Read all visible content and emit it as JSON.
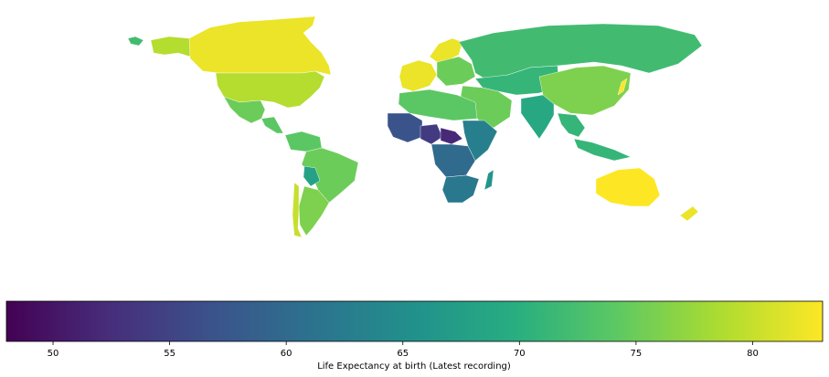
{
  "colorbar": {
    "label": "Life Expectancy at birth (Latest recording)",
    "min": 48,
    "max": 83,
    "ticks": [
      "50",
      "55",
      "60",
      "65",
      "70",
      "75",
      "80"
    ],
    "stops": [
      "#440154",
      "#472d7b",
      "#3b528b",
      "#2c728e",
      "#21918c",
      "#28ae80",
      "#5ec962",
      "#addc30",
      "#fde725"
    ]
  },
  "chart_data": {
    "type": "choropleth",
    "title": "",
    "value_label": "Life Expectancy at birth (Latest recording)",
    "range": [
      48,
      83
    ],
    "regions": [
      {
        "region": "Canada",
        "value": 82
      },
      {
        "region": "Alaska (USA)",
        "value": 79
      },
      {
        "region": "United States",
        "value": 79
      },
      {
        "region": "Greenland",
        "value": 72
      },
      {
        "region": "Mexico",
        "value": 75
      },
      {
        "region": "Central America",
        "value": 74
      },
      {
        "region": "Brazil",
        "value": 75
      },
      {
        "region": "Colombia / Venezuela",
        "value": 74
      },
      {
        "region": "Bolivia",
        "value": 68
      },
      {
        "region": "Argentina",
        "value": 76
      },
      {
        "region": "Chile",
        "value": 80
      },
      {
        "region": "Western Europe",
        "value": 82
      },
      {
        "region": "Scandinavia",
        "value": 82
      },
      {
        "region": "Eastern Europe",
        "value": 75
      },
      {
        "region": "Russia",
        "value": 72
      },
      {
        "region": "Central Asia",
        "value": 71
      },
      {
        "region": "China",
        "value": 76
      },
      {
        "region": "Japan",
        "value": 84
      },
      {
        "region": "India",
        "value": 69
      },
      {
        "region": "Southeast Asia",
        "value": 71
      },
      {
        "region": "Indonesia",
        "value": 71
      },
      {
        "region": "Middle East",
        "value": 75
      },
      {
        "region": "North Africa",
        "value": 74
      },
      {
        "region": "West Africa",
        "value": 57
      },
      {
        "region": "Nigeria",
        "value": 54
      },
      {
        "region": "Chad / Central African Republic",
        "value": 52
      },
      {
        "region": "Central Africa",
        "value": 60
      },
      {
        "region": "East Africa",
        "value": 63
      },
      {
        "region": "Southern Africa",
        "value": 62
      },
      {
        "region": "Madagascar",
        "value": 66
      },
      {
        "region": "Australia",
        "value": 83
      },
      {
        "region": "New Zealand",
        "value": 82
      }
    ]
  }
}
